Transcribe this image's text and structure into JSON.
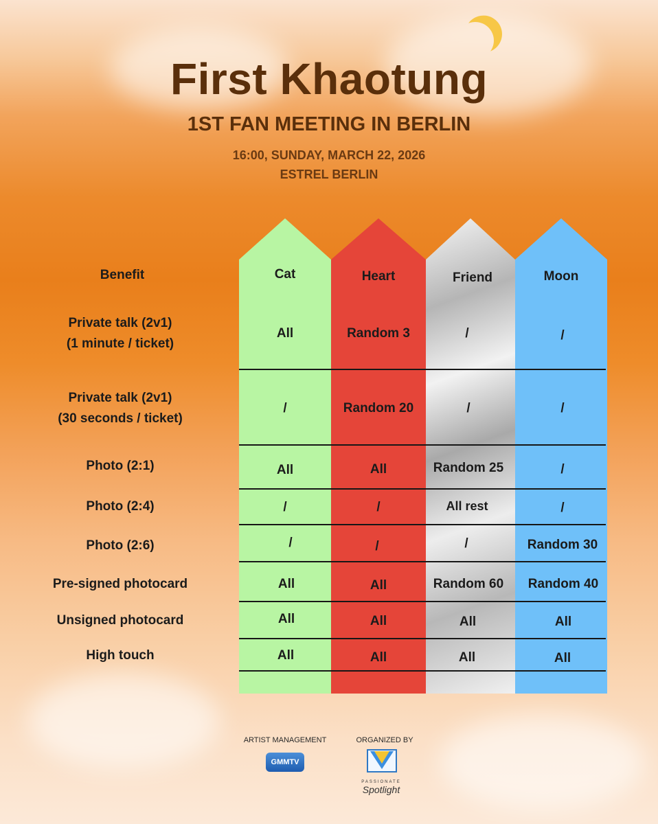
{
  "header": {
    "title": "First Khaotung",
    "subtitle": "1ST FAN MEETING IN BERLIN",
    "datetime": "16:00, SUNDAY, MARCH 22, 2026",
    "venue": "ESTREL BERLIN"
  },
  "table": {
    "benefit_header": "Benefit",
    "tiers": [
      {
        "name": "Cat",
        "color": "#b8f5a3"
      },
      {
        "name": "Heart",
        "color": "#e54539"
      },
      {
        "name": "Friend",
        "color": "#c0c0c0"
      },
      {
        "name": "Moon",
        "color": "#6fc0f9"
      }
    ],
    "rows": [
      {
        "label": [
          "Private talk (2v1)",
          "(1 minute / ticket)"
        ],
        "values": [
          "All",
          "Random 3",
          "/",
          "/"
        ]
      },
      {
        "label": [
          "Private talk (2v1)",
          "(30 seconds / ticket)"
        ],
        "values": [
          "/",
          "Random 20",
          "/",
          "/"
        ]
      },
      {
        "label": [
          "Photo (2:1)"
        ],
        "values": [
          "All",
          "All",
          "Random 25",
          "/"
        ]
      },
      {
        "label": [
          "Photo (2:4)"
        ],
        "values": [
          "/",
          "/",
          "All rest",
          "/"
        ]
      },
      {
        "label": [
          "Photo (2:6)"
        ],
        "values": [
          "/",
          "/",
          "/",
          "Random 30"
        ]
      },
      {
        "label": [
          "Pre-signed photocard"
        ],
        "values": [
          "All",
          "All",
          "Random 60",
          "Random 40"
        ]
      },
      {
        "label": [
          "Unsigned photocard"
        ],
        "values": [
          "All",
          "All",
          "All",
          "All"
        ]
      },
      {
        "label": [
          "High touch"
        ],
        "values": [
          "All",
          "All",
          "All",
          "All"
        ]
      }
    ]
  },
  "footer": {
    "artist_management_label": "ARTIST MANAGEMENT",
    "organized_by_label": "ORGANIZED BY",
    "artist_logo_text": "GMMTV",
    "organizer_logo_small": "PASSIONATE",
    "organizer_logo_text": "Spotlight"
  }
}
